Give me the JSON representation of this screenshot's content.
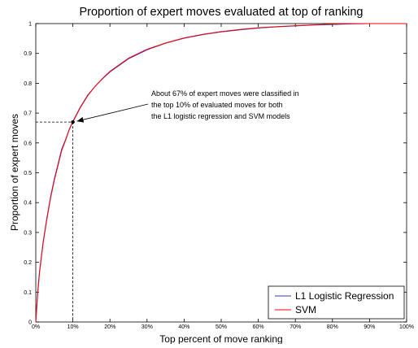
{
  "chart_data": {
    "type": "line",
    "title": "Proportion of expert moves evaluated at top of ranking",
    "xlabel": "Top percent of move ranking",
    "ylabel": "Proportion of expert moves",
    "xlim": [
      0,
      100
    ],
    "ylim": [
      0,
      1
    ],
    "x_ticks": [
      0,
      10,
      20,
      30,
      40,
      50,
      60,
      70,
      80,
      90,
      100
    ],
    "x_tick_labels": [
      "0%",
      "10%",
      "20%",
      "30%",
      "40%",
      "50%",
      "60%",
      "70%",
      "80%",
      "90%",
      "100%"
    ],
    "y_ticks": [
      0,
      0.1,
      0.2,
      0.3,
      0.4,
      0.5,
      0.6,
      0.7,
      0.8,
      0.9,
      1
    ],
    "y_tick_labels": [
      "0",
      "0.1",
      "0.2",
      "0.3",
      "0.4",
      "0.5",
      "0.6",
      "0.7",
      "0.8",
      "0.9",
      "1"
    ],
    "grid": false,
    "legend_position": "bottom-right",
    "series": [
      {
        "name": "L1 Logistic Regression",
        "color": "#3333cc",
        "x": [
          0,
          0.5,
          1,
          2,
          3,
          4,
          5,
          6,
          7,
          8,
          9,
          10,
          12,
          14,
          16,
          18,
          20,
          25,
          30,
          35,
          40,
          45,
          50,
          55,
          60,
          65,
          70,
          75,
          80,
          85,
          90,
          95,
          100
        ],
        "y": [
          0,
          0.1,
          0.17,
          0.27,
          0.35,
          0.42,
          0.48,
          0.53,
          0.58,
          0.61,
          0.645,
          0.672,
          0.72,
          0.76,
          0.79,
          0.815,
          0.838,
          0.882,
          0.912,
          0.934,
          0.951,
          0.963,
          0.972,
          0.979,
          0.985,
          0.989,
          0.992,
          0.995,
          0.997,
          0.999,
          1,
          1,
          1
        ]
      },
      {
        "name": "SVM",
        "color": "#ff0000",
        "x": [
          0,
          0.5,
          1,
          2,
          3,
          4,
          5,
          6,
          7,
          8,
          9,
          10,
          12,
          14,
          16,
          18,
          20,
          25,
          30,
          35,
          40,
          45,
          50,
          55,
          60,
          65,
          70,
          75,
          80,
          85,
          90,
          95,
          100
        ],
        "y": [
          0,
          0.09,
          0.165,
          0.265,
          0.345,
          0.415,
          0.475,
          0.525,
          0.575,
          0.608,
          0.643,
          0.67,
          0.718,
          0.758,
          0.79,
          0.816,
          0.84,
          0.884,
          0.914,
          0.935,
          0.952,
          0.964,
          0.973,
          0.98,
          0.986,
          0.99,
          0.993,
          0.996,
          0.998,
          1,
          1,
          1,
          1
        ]
      }
    ],
    "annotation": {
      "lines": [
        "About 67% of expert moves were classified in",
        "the top 10% of evaluated moves for both",
        "the L1 logistic regression and SVM models"
      ],
      "point_x": 10,
      "point_y": 0.67
    }
  }
}
